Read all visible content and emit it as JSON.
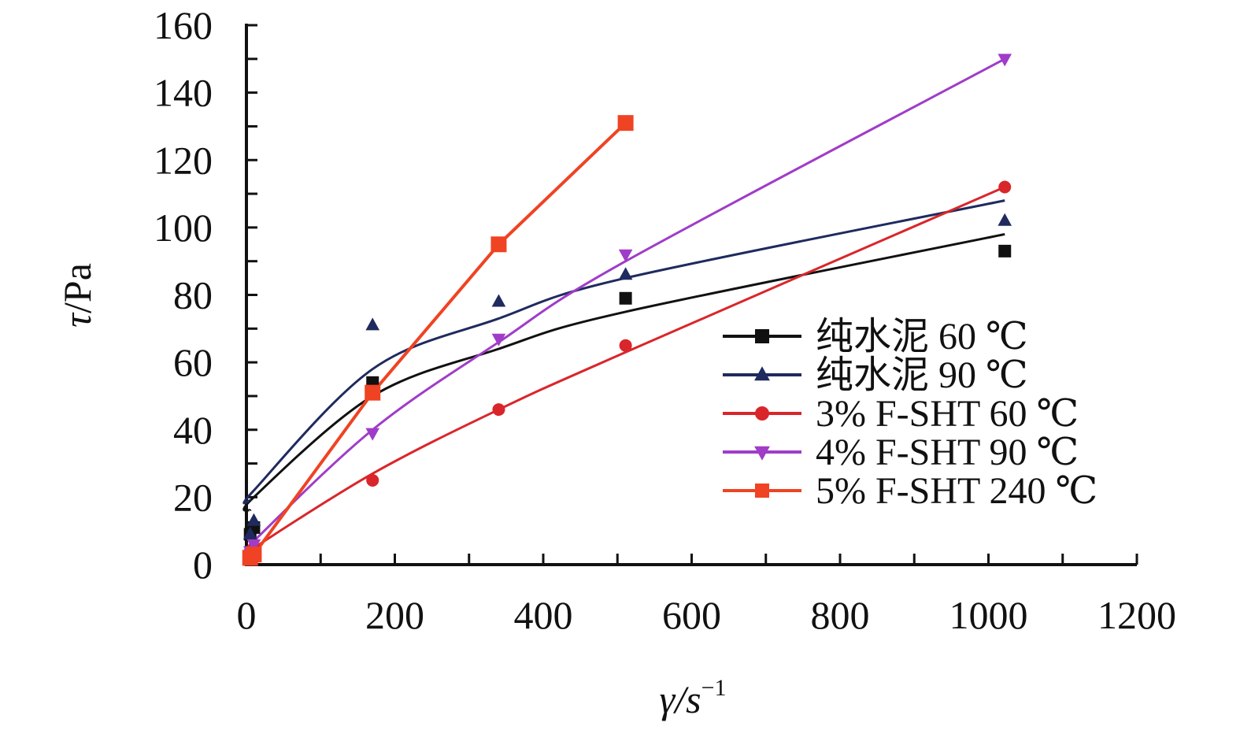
{
  "chart_data": {
    "type": "scatter",
    "xlabel": "γ/s",
    "xlabel_sup": "−1",
    "ylabel_italic": "τ",
    "ylabel_rest": "/Pa",
    "xlim": [
      0,
      1200
    ],
    "ylim": [
      0,
      160
    ],
    "x_ticks": [
      0,
      200,
      400,
      600,
      800,
      1000,
      1200
    ],
    "y_ticks": [
      0,
      20,
      40,
      60,
      80,
      100,
      120,
      140,
      160
    ],
    "x_tick_labels": [
      "0",
      "200",
      "400",
      "600",
      "800",
      "1000",
      "1200"
    ],
    "y_tick_labels": [
      "0",
      "20",
      "40",
      "60",
      "80",
      "100",
      "120",
      "140",
      "160"
    ],
    "grid": false,
    "legend_position": "right",
    "series": [
      {
        "name": "纯水泥 60 ℃",
        "color": "#111111",
        "marker": "square",
        "x": [
          5,
          10,
          170,
          511,
          1022
        ],
        "y": [
          9,
          11,
          54,
          79,
          93
        ],
        "fit": "power",
        "fit_points": [
          [
            5,
            16
          ],
          [
            10,
            20
          ],
          [
            170,
            50
          ],
          [
            340,
            64
          ],
          [
            511,
            75
          ],
          [
            1022,
            98
          ]
        ]
      },
      {
        "name": "纯水泥 90 ℃",
        "color": "#1f2a5e",
        "marker": "triangle-up",
        "x": [
          5,
          10,
          170,
          340,
          511,
          1022
        ],
        "y": [
          9,
          13,
          71,
          78,
          86,
          102
        ],
        "fit": "power",
        "fit_points": [
          [
            5,
            19
          ],
          [
            10,
            22
          ],
          [
            170,
            58
          ],
          [
            340,
            73
          ],
          [
            511,
            85
          ],
          [
            1022,
            108
          ]
        ]
      },
      {
        "name": "3% F-SHT 60 ℃",
        "color": "#d9262b",
        "marker": "circle",
        "x": [
          5,
          10,
          170,
          340,
          511,
          1022
        ],
        "y": [
          3,
          5,
          25,
          46,
          65,
          112
        ],
        "fit": "power",
        "fit_points": [
          [
            5,
            4
          ],
          [
            10,
            5
          ],
          [
            170,
            27
          ],
          [
            340,
            46
          ],
          [
            511,
            63
          ],
          [
            1022,
            112
          ]
        ]
      },
      {
        "name": "4% F-SHT 90 ℃",
        "color": "#a03cc8",
        "marker": "triangle-down",
        "x": [
          5,
          10,
          170,
          340,
          511,
          1022
        ],
        "y": [
          4,
          6,
          39,
          67,
          92,
          150
        ],
        "fit": "power",
        "fit_points": [
          [
            5,
            5
          ],
          [
            10,
            7
          ],
          [
            170,
            40
          ],
          [
            340,
            66
          ],
          [
            511,
            90
          ],
          [
            1022,
            150
          ]
        ]
      },
      {
        "name": "5% F-SHT 240 ℃",
        "color": "#ef4323",
        "marker": "square",
        "x": [
          5,
          10,
          170,
          340,
          511
        ],
        "y": [
          2,
          3,
          51,
          95,
          131
        ],
        "fit": "line",
        "fit_points": [
          [
            5,
            2
          ],
          [
            10,
            3
          ],
          [
            170,
            51
          ],
          [
            340,
            95
          ],
          [
            511,
            131
          ]
        ]
      }
    ]
  }
}
